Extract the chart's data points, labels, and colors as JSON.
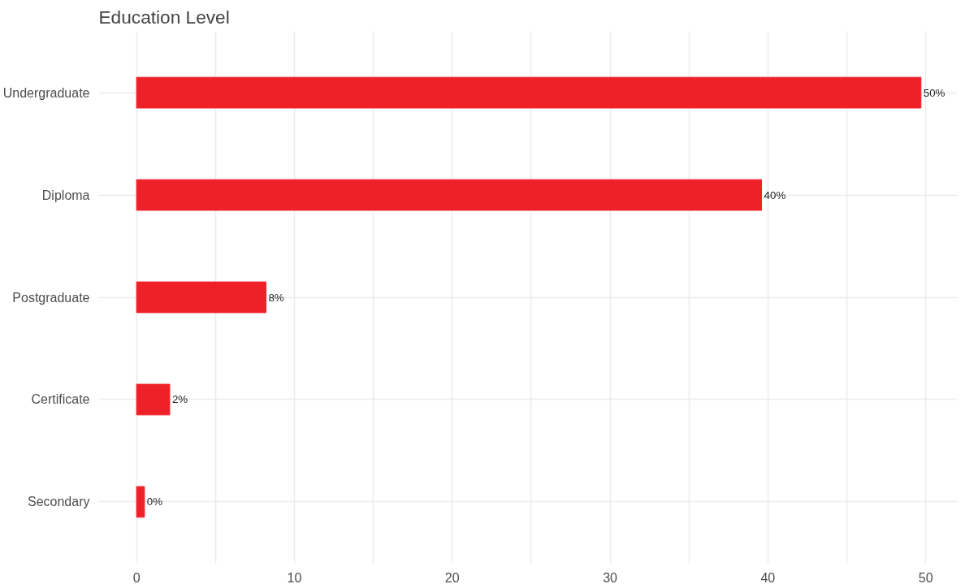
{
  "chart_data": {
    "type": "bar",
    "orientation": "horizontal",
    "title": "Education Level",
    "categories": [
      "Undergraduate",
      "Diploma",
      "Postgraduate",
      "Certificate",
      "Secondary"
    ],
    "values": [
      49.7,
      39.6,
      8.2,
      2.1,
      0.5
    ],
    "value_labels": [
      "50%",
      "40%",
      "8%",
      "2%",
      "0%"
    ],
    "color": "#ee2028",
    "xlim": [
      -2.4,
      52
    ],
    "xticks": [
      0,
      {
        "value": 5,
        "label": null
      },
      10,
      {
        "value": 15,
        "label": null
      },
      20,
      {
        "value": 25,
        "label": null
      },
      30,
      {
        "value": 35,
        "label": null
      },
      40,
      {
        "value": 45,
        "label": null
      },
      50
    ],
    "grid": true
  }
}
